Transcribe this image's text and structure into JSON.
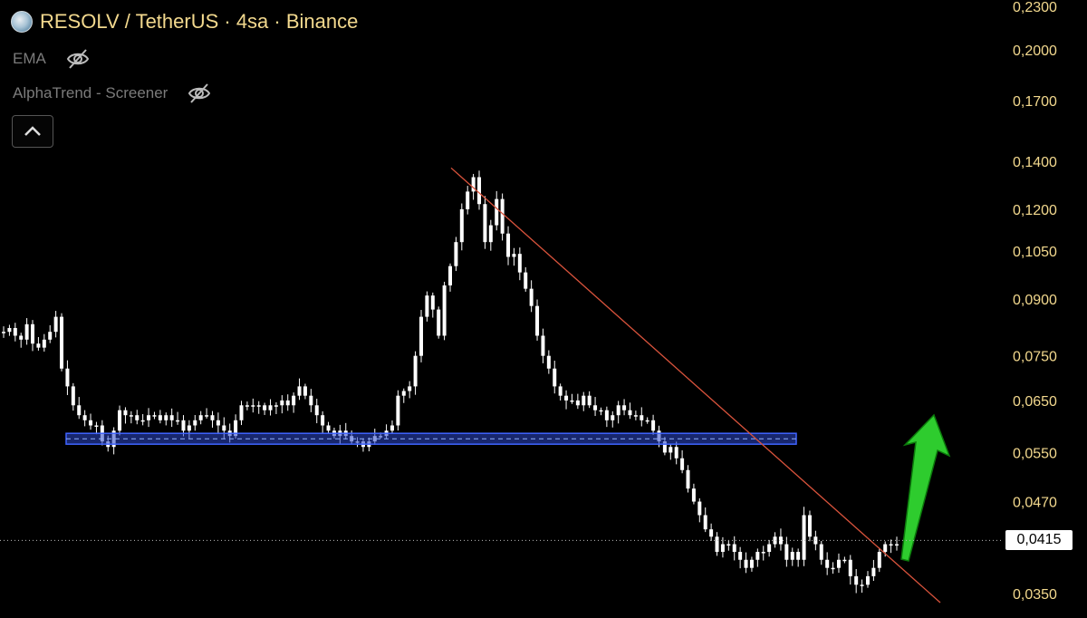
{
  "header": {
    "title": "RESOLV / TetherUS · 4sa · Binance",
    "indicators": [
      {
        "label": "EMA",
        "icon": "eye-off-icon"
      },
      {
        "label": "AlphaTrend - Screener",
        "icon": "eye-off-icon"
      }
    ],
    "collapse_icon": "chevron-up-icon"
  },
  "colors": {
    "background": "#000000",
    "candles": "#ffffff",
    "title": "#f3d98e",
    "axis_labels": "#f3d98e",
    "support_zone": "#2b47c9",
    "trendline": "#d9533c",
    "arrow": "#2ecc2e"
  },
  "chart_data": {
    "type": "line",
    "title": "RESOLV / TetherUS · 4sa · Binance",
    "xlabel": "",
    "ylabel": "",
    "y_scale": "log",
    "ylim": [
      0.033,
      0.235
    ],
    "y_ticks": [
      {
        "value": 0.23,
        "label": "0,2300"
      },
      {
        "value": 0.2,
        "label": "0,2000"
      },
      {
        "value": 0.17,
        "label": "0,1700"
      },
      {
        "value": 0.14,
        "label": "0,1400"
      },
      {
        "value": 0.12,
        "label": "0,1200"
      },
      {
        "value": 0.105,
        "label": "0,1050"
      },
      {
        "value": 0.09,
        "label": "0,0900"
      },
      {
        "value": 0.075,
        "label": "0,0750"
      },
      {
        "value": 0.065,
        "label": "0,0650"
      },
      {
        "value": 0.055,
        "label": "0,0550"
      },
      {
        "value": 0.047,
        "label": "0,0470"
      },
      {
        "value": 0.035,
        "label": "0,0350"
      }
    ],
    "current_price": {
      "value": 0.0415,
      "label": "0,0415"
    },
    "series": [
      {
        "values": [
          0.081,
          0.082,
          0.08,
          0.079,
          0.083,
          0.078,
          0.077,
          0.079,
          0.081,
          0.085,
          0.072,
          0.068,
          0.064,
          0.062,
          0.061,
          0.06,
          0.06,
          0.057,
          0.056,
          0.059,
          0.063,
          0.062,
          0.062,
          0.061,
          0.061,
          0.062,
          0.062,
          0.061,
          0.062,
          0.061,
          0.061,
          0.059,
          0.06,
          0.061,
          0.062,
          0.062,
          0.061,
          0.06,
          0.059,
          0.058,
          0.061,
          0.064,
          0.064,
          0.064,
          0.064,
          0.063,
          0.064,
          0.064,
          0.065,
          0.064,
          0.066,
          0.068,
          0.066,
          0.064,
          0.062,
          0.06,
          0.059,
          0.058,
          0.059,
          0.058,
          0.057,
          0.057,
          0.056,
          0.057,
          0.058,
          0.058,
          0.059,
          0.06,
          0.066,
          0.067,
          0.068,
          0.075,
          0.085,
          0.091,
          0.087,
          0.08,
          0.094,
          0.1,
          0.108,
          0.12,
          0.127,
          0.133,
          0.122,
          0.108,
          0.114,
          0.124,
          0.111,
          0.103,
          0.104,
          0.098,
          0.093,
          0.088,
          0.08,
          0.075,
          0.072,
          0.068,
          0.066,
          0.065,
          0.065,
          0.064,
          0.066,
          0.064,
          0.063,
          0.063,
          0.061,
          0.062,
          0.064,
          0.063,
          0.062,
          0.062,
          0.061,
          0.061,
          0.059,
          0.057,
          0.055,
          0.056,
          0.054,
          0.052,
          0.049,
          0.047,
          0.045,
          0.043,
          0.042,
          0.04,
          0.041,
          0.041,
          0.04,
          0.039,
          0.038,
          0.039,
          0.04,
          0.04,
          0.041,
          0.042,
          0.041,
          0.039,
          0.04,
          0.039,
          0.045,
          0.042,
          0.041,
          0.039,
          0.038,
          0.038,
          0.039,
          0.039,
          0.037,
          0.036,
          0.036,
          0.037,
          0.038,
          0.04,
          0.041,
          0.041,
          0.041
        ]
      }
    ],
    "annotations": {
      "support_zone": {
        "low": 0.0565,
        "high": 0.0585
      },
      "trendline": {
        "from_value": 0.137,
        "to_value": 0.034
      },
      "breakout_arrow": "up"
    },
    "grid": false,
    "legend": "none"
  }
}
